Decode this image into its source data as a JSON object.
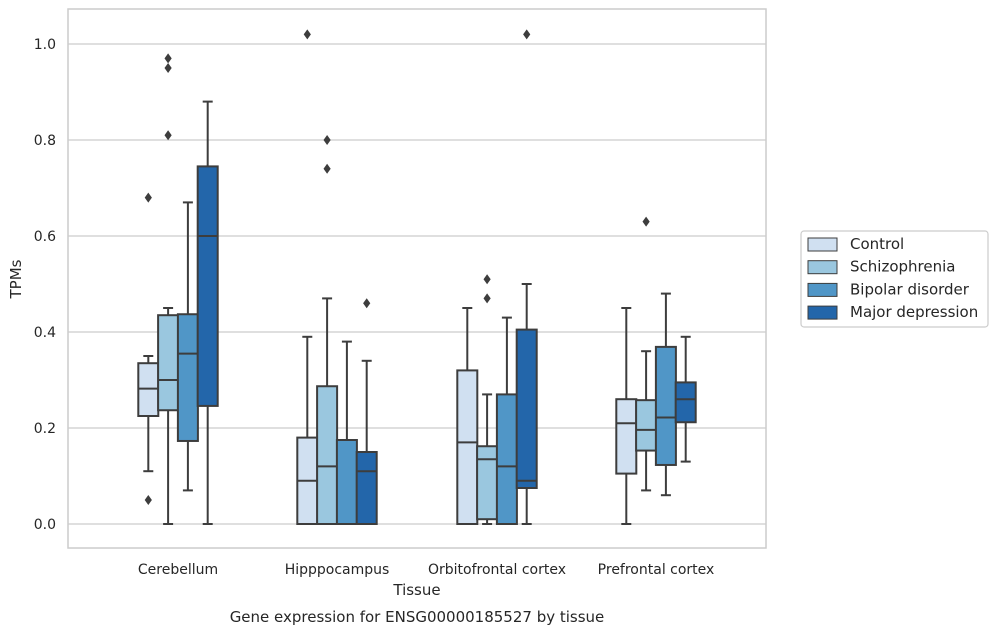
{
  "chart_data": {
    "type": "boxplot",
    "title": "",
    "caption": "Gene expression for ENSG00000185527 by tissue",
    "xlabel": "Tissue",
    "ylabel": "TPMs",
    "ylim": [
      -0.05,
      1.07
    ],
    "yticks": [
      0.0,
      0.2,
      0.4,
      0.6,
      0.8,
      1.0
    ],
    "ytick_labels": [
      "0.0",
      "0.2",
      "0.4",
      "0.6",
      "0.8",
      "1.0"
    ],
    "grid": "horizontal",
    "legend_position": "right",
    "categories": [
      "Cerebellum",
      "Hipppocampus",
      "Orbitofrontal cortex",
      "Prefrontal cortex"
    ],
    "series": [
      {
        "name": "Control",
        "color": "#d0e0f1",
        "boxes": [
          {
            "whislo": 0.11,
            "q1": 0.225,
            "med": 0.282,
            "q3": 0.335,
            "whishi": 0.35,
            "fliers": [
              0.68,
              0.05
            ]
          },
          {
            "whislo": 0.0,
            "q1": 0.0,
            "med": 0.09,
            "q3": 0.18,
            "whishi": 0.39,
            "fliers": [
              1.02
            ]
          },
          {
            "whislo": 0.0,
            "q1": 0.0,
            "med": 0.17,
            "q3": 0.32,
            "whishi": 0.45,
            "fliers": []
          },
          {
            "whislo": 0.0,
            "q1": 0.105,
            "med": 0.21,
            "q3": 0.26,
            "whishi": 0.45,
            "fliers": []
          }
        ]
      },
      {
        "name": "Schizophrenia",
        "color": "#9ac7df",
        "boxes": [
          {
            "whislo": 0.0,
            "q1": 0.237,
            "med": 0.3,
            "q3": 0.435,
            "whishi": 0.45,
            "fliers": [
              0.97,
              0.95,
              0.81
            ]
          },
          {
            "whislo": 0.0,
            "q1": 0.0,
            "med": 0.12,
            "q3": 0.287,
            "whishi": 0.47,
            "fliers": [
              0.8,
              0.74
            ]
          },
          {
            "whislo": 0.0,
            "q1": 0.01,
            "med": 0.135,
            "q3": 0.162,
            "whishi": 0.27,
            "fliers": [
              0.51,
              0.47
            ]
          },
          {
            "whislo": 0.07,
            "q1": 0.153,
            "med": 0.196,
            "q3": 0.258,
            "whishi": 0.36,
            "fliers": [
              0.63
            ]
          }
        ]
      },
      {
        "name": "Bipolar disorder",
        "color": "#5096c7",
        "boxes": [
          {
            "whislo": 0.07,
            "q1": 0.173,
            "med": 0.355,
            "q3": 0.437,
            "whishi": 0.67,
            "fliers": []
          },
          {
            "whislo": 0.0,
            "q1": 0.0,
            "med": 0.0,
            "q3": 0.175,
            "whishi": 0.38,
            "fliers": []
          },
          {
            "whislo": 0.0,
            "q1": 0.0,
            "med": 0.12,
            "q3": 0.27,
            "whishi": 0.43,
            "fliers": []
          },
          {
            "whislo": 0.06,
            "q1": 0.123,
            "med": 0.222,
            "q3": 0.369,
            "whishi": 0.48,
            "fliers": []
          }
        ]
      },
      {
        "name": "Major depression",
        "color": "#2366aa",
        "boxes": [
          {
            "whislo": 0.0,
            "q1": 0.246,
            "med": 0.6,
            "q3": 0.745,
            "whishi": 0.88,
            "fliers": []
          },
          {
            "whislo": 0.0,
            "q1": 0.0,
            "med": 0.11,
            "q3": 0.15,
            "whishi": 0.34,
            "fliers": [
              0.46
            ]
          },
          {
            "whislo": 0.0,
            "q1": 0.075,
            "med": 0.09,
            "q3": 0.405,
            "whishi": 0.5,
            "fliers": [
              1.02
            ]
          },
          {
            "whislo": 0.13,
            "q1": 0.212,
            "med": 0.26,
            "q3": 0.295,
            "whishi": 0.39,
            "fliers": []
          }
        ]
      }
    ]
  }
}
